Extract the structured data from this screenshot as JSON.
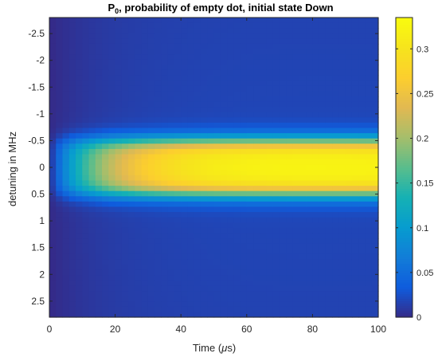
{
  "chart_data": {
    "type": "heatmap",
    "title_main": "P",
    "title_sub": "0",
    "title_rest": ", probability of empty dot, initial state Down",
    "xlabel_prefix": "Time (",
    "xlabel_symbol": "μ",
    "xlabel_suffix": "s)",
    "ylabel": "detuning in MHz",
    "xlim": [
      0,
      100
    ],
    "ylim": [
      -2.8,
      2.8
    ],
    "y_reversed": true,
    "x_ticks": [
      "0",
      "20",
      "40",
      "60",
      "80",
      "100"
    ],
    "y_ticks": [
      "-2.5",
      "-2",
      "-1.5",
      "-1",
      "-0.5",
      "0",
      "0.5",
      "1",
      "1.5",
      "2",
      "2.5"
    ],
    "colorbar": {
      "range": [
        0,
        0.335
      ],
      "ticks": [
        "0",
        "0.05",
        "0.1",
        "0.15",
        "0.2",
        "0.25",
        "0.3"
      ],
      "colormap": "parula"
    },
    "grid": {
      "n_time": 50,
      "n_detuning": 57,
      "time_range": [
        0,
        100
      ],
      "detuning_range": [
        -2.8,
        2.8
      ]
    },
    "model": {
      "p_max": 0.335,
      "rise_time_us": 18,
      "plateau_halfwidth_mhz": 0.5,
      "edge_width_mhz": 0.35,
      "peak_time_us": 50,
      "late_decay": 0.03,
      "edge_decay": 0.15
    }
  }
}
